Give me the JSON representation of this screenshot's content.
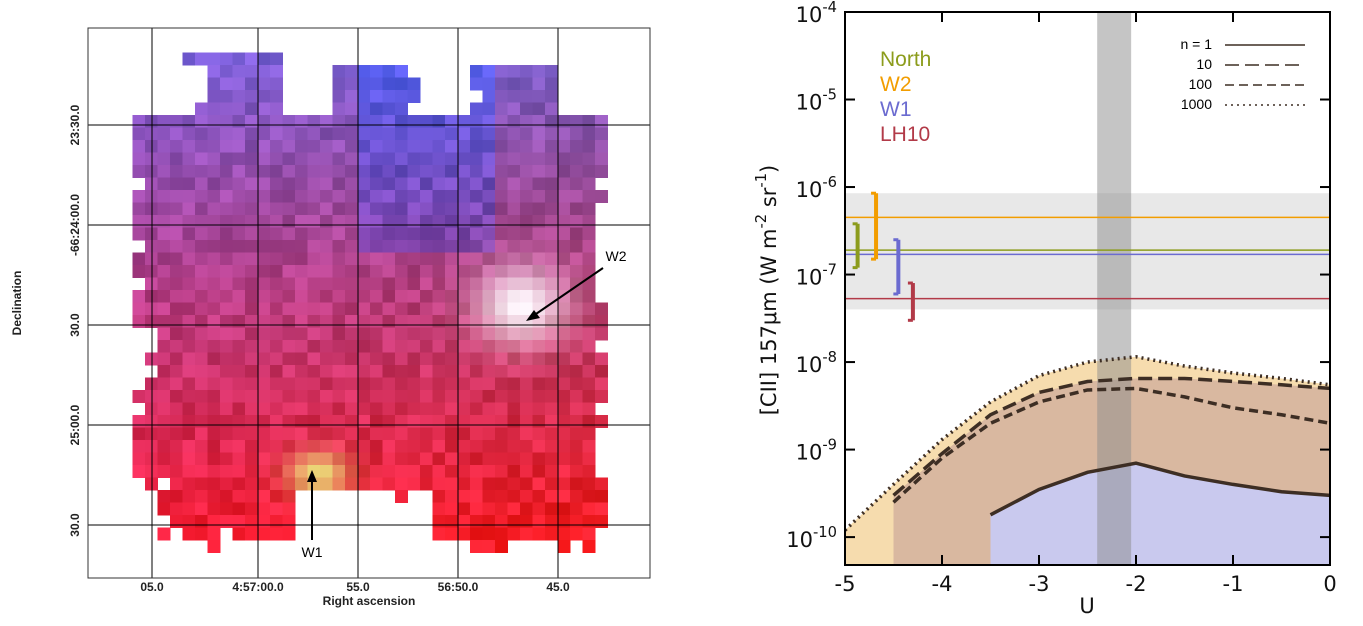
{
  "chart_data": [
    {
      "type": "image",
      "xlabel": "Right ascension",
      "ylabel": "Declination",
      "xticks": [
        "05.0",
        "4:57:00.0",
        "55.0",
        "56:50.0",
        "45.0"
      ],
      "yticks": [
        "23:30.0",
        "-66:24:00.0",
        "30.0",
        "25:00.0",
        "30.0"
      ],
      "annotations": [
        "W1",
        "W2"
      ]
    },
    {
      "type": "line",
      "log_y": true,
      "xlabel": "U",
      "ylabel": "[CII] 157μm (W m^-2 sr^-1)",
      "xlim": [
        -5,
        0
      ],
      "xticks": [
        -5,
        -4,
        -3,
        -2,
        -1,
        0
      ],
      "ylim": [
        4.8e-11,
        0.0001
      ],
      "yticks": [
        {
          "value": 1e-10,
          "label": "10^-10"
        },
        {
          "value": 1e-09,
          "label": "10^-9"
        },
        {
          "value": 1e-08,
          "label": "10^-8"
        },
        {
          "value": 1e-07,
          "label": "10^-7"
        },
        {
          "value": 1e-06,
          "label": "10^-6"
        },
        {
          "value": 1e-05,
          "label": "10^-5"
        },
        {
          "value": 0.0001,
          "label": "10^-4"
        }
      ],
      "x_band": [
        -2.4,
        -2.05
      ],
      "y_band": [
        4e-08,
        8.5e-07
      ],
      "x": [
        -5,
        -4.5,
        -4,
        -3.5,
        -3,
        -2.5,
        -2,
        -1.5,
        -1,
        -0.5,
        0
      ],
      "series": [
        {
          "name": "n = 1",
          "color": "#3d2e24",
          "dash": "solid",
          "fill": "#c9c9ee",
          "values": [
            null,
            null,
            null,
            1.8e-10,
            3.5e-10,
            5.5e-10,
            7e-10,
            5e-10,
            4e-10,
            3.3e-10,
            3e-10
          ]
        },
        {
          "name": "10",
          "color": "#3d2e24",
          "dash": "longdash",
          "fill": "#d9b8a0",
          "values": [
            null,
            3e-10,
            9e-10,
            2.5e-09,
            4.5e-09,
            6e-09,
            6.5e-09,
            6.5e-09,
            6e-09,
            5.5e-09,
            5e-09
          ]
        },
        {
          "name": "100",
          "color": "#3d2e24",
          "dash": "dashed",
          "fill": null,
          "values": [
            null,
            2.5e-10,
            8e-10,
            2e-09,
            3.5e-09,
            4.8e-09,
            5e-09,
            4e-09,
            3e-09,
            2.5e-09,
            2e-09
          ]
        },
        {
          "name": "1000",
          "color": "#3d2e24",
          "dash": "dotted",
          "fill": "#f6dcae",
          "values": [
            1.2e-10,
            4e-10,
            1.3e-09,
            3.5e-09,
            7e-09,
            1e-08,
            1.15e-08,
            9e-09,
            7.5e-09,
            6.5e-09,
            5.5e-09
          ]
        }
      ],
      "observations": [
        {
          "name": "North",
          "color": "#8c9c1c",
          "value": 1.9e-07,
          "x": -4.87,
          "low": 1.2e-07,
          "high": 3.8e-07
        },
        {
          "name": "W2",
          "color": "#f29d00",
          "value": 4.5e-07,
          "x": -4.68,
          "low": 1.5e-07,
          "high": 8.5e-07
        },
        {
          "name": "W1",
          "color": "#6b6bd0",
          "value": 1.7e-07,
          "x": -4.45,
          "low": 6e-08,
          "high": 2.5e-07
        },
        {
          "name": "LH10",
          "color": "#b23a48",
          "value": 5.3e-08,
          "x": -4.3,
          "low": 3e-08,
          "high": 8e-08
        }
      ]
    }
  ]
}
